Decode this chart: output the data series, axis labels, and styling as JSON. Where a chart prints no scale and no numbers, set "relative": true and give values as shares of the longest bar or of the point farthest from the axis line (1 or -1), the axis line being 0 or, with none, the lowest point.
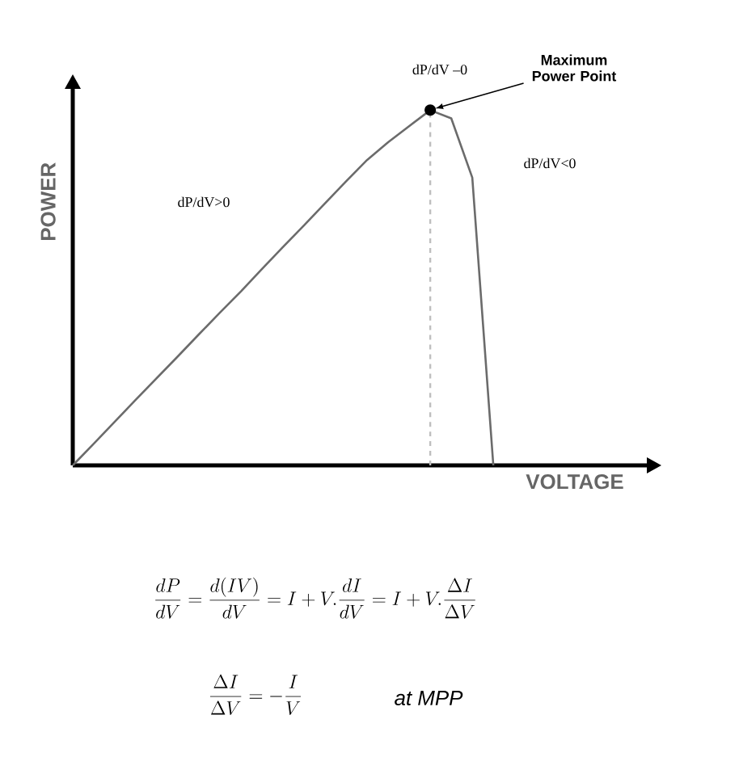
{
  "chart_data": {
    "type": "line",
    "relative": true,
    "color": "#6b6b6b",
    "xlabel": "VOLTAGE",
    "ylabel": "POWER",
    "categories": [
      null,
      null,
      null,
      null,
      null,
      null,
      null,
      null,
      null,
      null,
      null,
      null,
      null,
      null,
      null,
      null,
      null,
      null,
      null,
      null,
      null,
      null,
      null,
      null,
      null,
      null,
      null,
      null
    ],
    "values": [
      0,
      0.061,
      0.123,
      0.185,
      0.246,
      0.307,
      0.369,
      0.43,
      0.49,
      0.553,
      0.615,
      0.676,
      0.738,
      0.8,
      0.86,
      0.91,
      0.955,
      1,
      0.977,
      0.81,
      0,
      null,
      null,
      null,
      null,
      null,
      null,
      null
    ],
    "annotations": [
      "dP/dV –0",
      "Maximum Power Point",
      "dP/dV<0",
      "dP/dV>0",
      "\\frac{dP}{dV}=\\frac{d(IV)}{dV}=I+V.\\frac{dI}{dV}=I+V.\\frac{\\Delta I}{\\Delta V}",
      "\\frac{\\Delta I}{\\Delta V}=-\\frac{I}{V}",
      "at MPP"
    ]
  }
}
